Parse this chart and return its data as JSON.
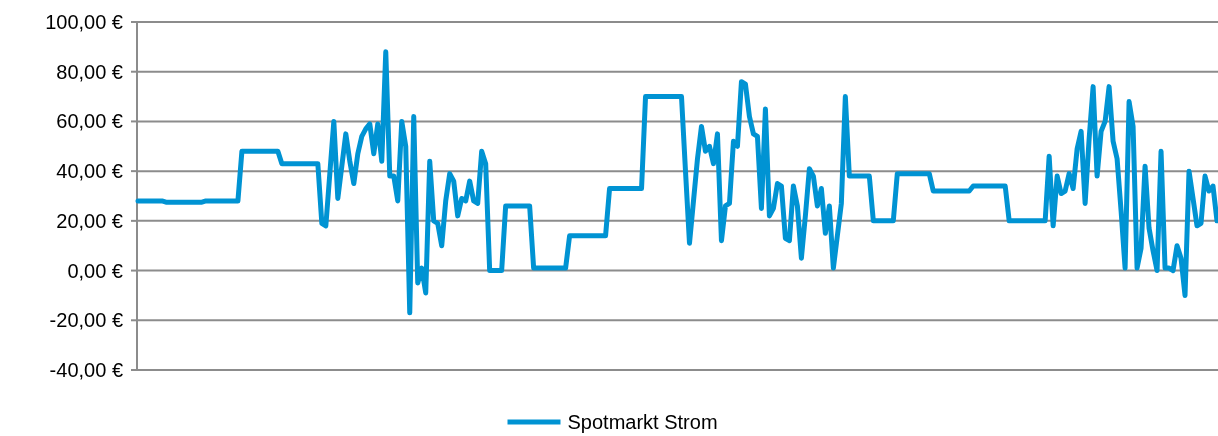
{
  "chart_data": {
    "type": "line",
    "ylim": [
      -40,
      100
    ],
    "yticks": [
      {
        "value": -40,
        "label": "-40,00 €"
      },
      {
        "value": -20,
        "label": "-20,00 €"
      },
      {
        "value": 0,
        "label": "0,00 €"
      },
      {
        "value": 20,
        "label": "20,00 €"
      },
      {
        "value": 40,
        "label": "40,00 €"
      },
      {
        "value": 60,
        "label": "60,00 €"
      },
      {
        "value": 80,
        "label": "80,00 €"
      },
      {
        "value": 100,
        "label": "100,00 €"
      }
    ],
    "tick_labels": "y",
    "grid": "y",
    "legend": "bottom",
    "marker": "none",
    "line_style": "solid",
    "categories": [
      null,
      null,
      null,
      null,
      null,
      null,
      null,
      null,
      null,
      null,
      null,
      null,
      null,
      null,
      null,
      null,
      null,
      null,
      null,
      null,
      null,
      null,
      null,
      null,
      null,
      null,
      null,
      null,
      null,
      null,
      null,
      null,
      null,
      null,
      null,
      null,
      null,
      null,
      null,
      null,
      null,
      null,
      null,
      null,
      null,
      null,
      null,
      null,
      null,
      null,
      null,
      null,
      null,
      null,
      null,
      null,
      null,
      null,
      null,
      null,
      null,
      null,
      null,
      null,
      null,
      null,
      null,
      null,
      null,
      null,
      null,
      null,
      null,
      null,
      null,
      null,
      null,
      null,
      null,
      null,
      null,
      null,
      null,
      null,
      null,
      null,
      null,
      null,
      null,
      null,
      null,
      null,
      null,
      null,
      null,
      null,
      null,
      null,
      null,
      null,
      null,
      null,
      null,
      null,
      null,
      null,
      null,
      null,
      null,
      null,
      null,
      null,
      null,
      null,
      null,
      null,
      null,
      null,
      null,
      null,
      null,
      null,
      null,
      null,
      null,
      null,
      null,
      null,
      null,
      null,
      null,
      null,
      null,
      null,
      null,
      null,
      null,
      null,
      null,
      null,
      null,
      null,
      null,
      null,
      null,
      null,
      null,
      null,
      null,
      null,
      null,
      null,
      null,
      null,
      null,
      null,
      null,
      null,
      null,
      null,
      null,
      null,
      null,
      null,
      null,
      null,
      null,
      null,
      null,
      null,
      null,
      null,
      null,
      null,
      null,
      null,
      null,
      null,
      null,
      null,
      null,
      null,
      null,
      null,
      null,
      null,
      null,
      null,
      null,
      null,
      null,
      null,
      null,
      null,
      null,
      null,
      null,
      null,
      null,
      null,
      null,
      null,
      null,
      null,
      null,
      null,
      null,
      null,
      null,
      null,
      null,
      null,
      null,
      null,
      null,
      null,
      null,
      null,
      null,
      null,
      null,
      null,
      null,
      null,
      null,
      null,
      null,
      null,
      null,
      null,
      null,
      null,
      null,
      null,
      null,
      null,
      null,
      null,
      null,
      null,
      null,
      null,
      null,
      null,
      null,
      null,
      null,
      null,
      null,
      null,
      null,
      null,
      null,
      null,
      null,
      null,
      null,
      null,
      null,
      null,
      null,
      null,
      null,
      null,
      null,
      null,
      null,
      null,
      null,
      null,
      null
    ],
    "series": [
      {
        "name": "Spotmarkt Strom",
        "color": "#0093d3",
        "values": [
          28,
          28,
          28,
          28,
          28,
          28,
          28,
          27.5,
          27.5,
          27.5,
          27.5,
          27.5,
          27.5,
          27.5,
          27.5,
          27.5,
          27.5,
          28,
          28,
          28,
          28,
          28,
          28,
          28,
          28,
          28,
          48,
          48,
          48,
          48,
          48,
          48,
          48,
          48,
          48,
          48,
          43,
          43,
          43,
          43,
          43,
          43,
          43,
          43,
          43,
          43,
          19,
          18,
          39,
          60,
          29,
          42,
          55,
          44,
          35,
          47,
          54,
          57,
          59,
          47,
          59,
          44,
          88,
          38,
          38,
          28,
          60,
          50,
          -17,
          62,
          -5,
          1,
          -9,
          44,
          20,
          19,
          10,
          28,
          39,
          36,
          22,
          29,
          28,
          36,
          28,
          27,
          48,
          43,
          0,
          0,
          0,
          0,
          26,
          26,
          26,
          26,
          26,
          26,
          26,
          1,
          1,
          1,
          1,
          1,
          1,
          1,
          1,
          1,
          14,
          14,
          14,
          14,
          14,
          14,
          14,
          14,
          14,
          14,
          33,
          33,
          33,
          33,
          33,
          33,
          33,
          33,
          33,
          70,
          70,
          70,
          70,
          70,
          70,
          70,
          70,
          70,
          70,
          40,
          11,
          28,
          45,
          58,
          48,
          50,
          43,
          55,
          12,
          26,
          27,
          52,
          50,
          76,
          75,
          62,
          55,
          54,
          25,
          65,
          22,
          25,
          35,
          34,
          13,
          12,
          34,
          26,
          5,
          22,
          41,
          38,
          26,
          33,
          15,
          26,
          1,
          14,
          27,
          70,
          38,
          38,
          38,
          38,
          38,
          38,
          20,
          20,
          20,
          20,
          20,
          20,
          39,
          39,
          39,
          39,
          39,
          39,
          39,
          39,
          39,
          32,
          32,
          32,
          32,
          32,
          32,
          32,
          32,
          32,
          32,
          34,
          34,
          34,
          34,
          34,
          34,
          34,
          34,
          34,
          20,
          20,
          20,
          20,
          20,
          20,
          20,
          20,
          20,
          20,
          46,
          18,
          38,
          31,
          32,
          39,
          33,
          49,
          56,
          27,
          53,
          74,
          38,
          56,
          60,
          74,
          52,
          45,
          24,
          1,
          68,
          58,
          1,
          9,
          42,
          17,
          8,
          0,
          48,
          1,
          1,
          0,
          10,
          5,
          -10,
          40,
          29,
          18,
          19,
          38,
          32,
          34,
          20
        ]
      }
    ]
  }
}
